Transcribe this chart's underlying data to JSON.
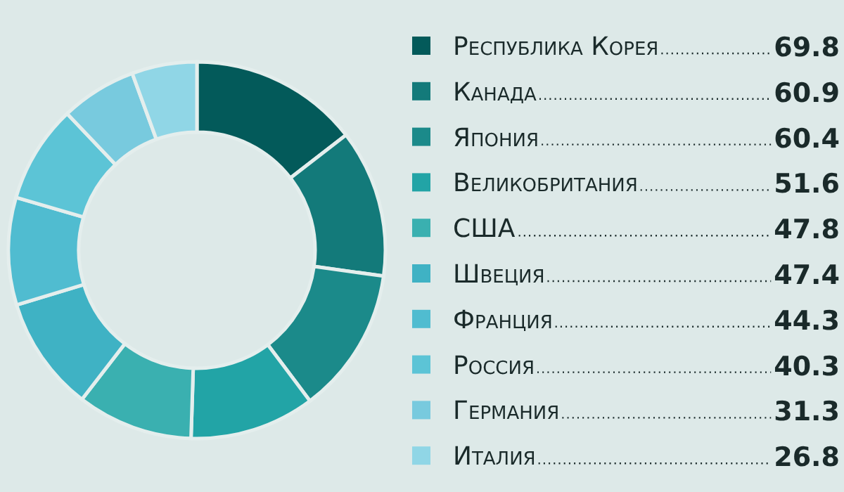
{
  "chart_data": {
    "type": "donut",
    "categories": [
      "Республика Корея",
      "Канада",
      "Япония",
      "Великобритания",
      "США",
      "Швеция",
      "Франция",
      "Россия",
      "Германия",
      "Италия"
    ],
    "values": [
      69.8,
      60.9,
      60.4,
      51.6,
      47.8,
      47.4,
      44.3,
      40.3,
      31.3,
      26.8
    ],
    "colors": [
      "#035a5a",
      "#137a7a",
      "#1b8a8a",
      "#22a4a6",
      "#3ab0b0",
      "#3fb2c4",
      "#50bcd0",
      "#5cc4d6",
      "#78cade",
      "#90d6e6"
    ],
    "data_labels": true,
    "legend": "right"
  }
}
